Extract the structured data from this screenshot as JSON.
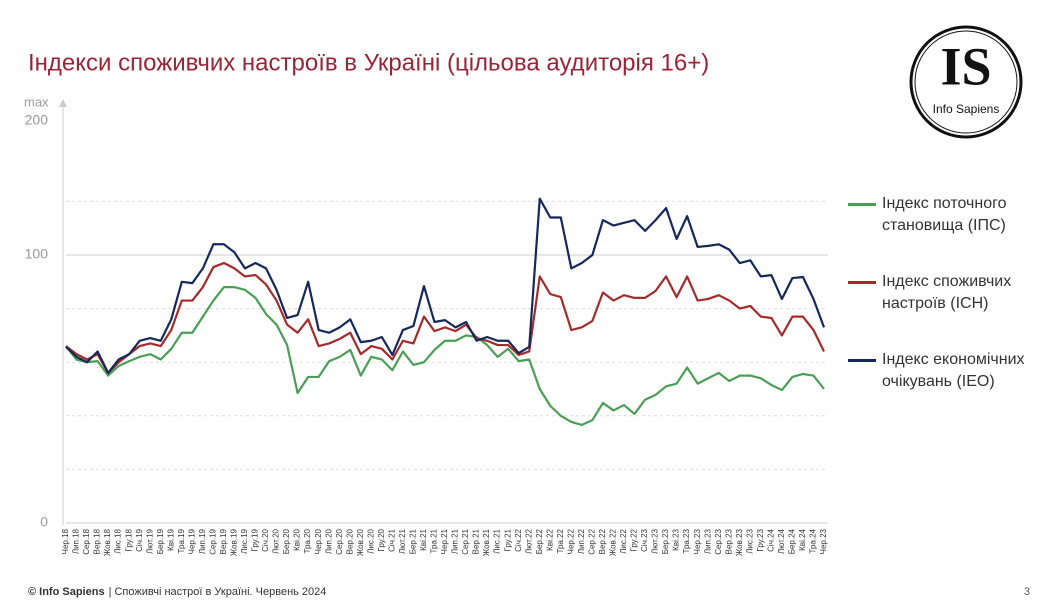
{
  "chart_data": {
    "type": "line",
    "title": "Індекси споживчих настроїв в Україні (цільова аудиторія 16+)",
    "y_axis_max_label": "max",
    "y_axis_top_label": "200",
    "categories": [
      "Чер.18",
      "Лип.18",
      "Сер.18",
      "Вер.18",
      "Жов.18",
      "Лис.18",
      "Гру.18",
      "Січ.19",
      "Лют.19",
      "Бер.19",
      "Кві.19",
      "Тра.19",
      "Чер.19",
      "Лип.19",
      "Сер.19",
      "Вер.19",
      "Жов.19",
      "Лис.19",
      "Гру.19",
      "Січ.20",
      "Лют.20",
      "Бер.20",
      "Кві.20",
      "Тра.20",
      "Чер.20",
      "Лип.20",
      "Сер.20",
      "Вер.20",
      "Жов.20",
      "Лис.20",
      "Гру.20",
      "Січ.21",
      "Лют.21",
      "Бер.21",
      "Кві.21",
      "Тра.21",
      "Чер.21",
      "Лип.21",
      "Сер.21",
      "Вер.21",
      "Жов.21",
      "Лис.21",
      "Гру.21",
      "Січ.22",
      "Лют.22",
      "Бер.22",
      "Кві.22",
      "Тра.22",
      "Чер.22",
      "Лип.22",
      "Сер.22",
      "Вер.22",
      "Жов.22",
      "Лис.22",
      "Гру.22",
      "Січ.23",
      "Лют.23",
      "Бер.23",
      "Кві.23",
      "Тра.23",
      "Чер.23",
      "Лип.23",
      "Сер.23",
      "Вер.23",
      "Жов.23",
      "Лис.23",
      "Гру.23",
      "Січ.24",
      "Лют.24",
      "Бер.24",
      "Кві.24",
      "Тра.24",
      "Чер.23"
    ],
    "series": [
      {
        "name": "Індекс поточного становища (ІПС)",
        "color": "#4a9e56",
        "values": [
          66,
          61,
          60,
          60.4,
          55,
          58.6,
          60.4,
          62,
          63,
          61,
          65,
          71,
          71,
          77,
          83,
          88,
          88,
          87,
          84,
          78,
          74,
          66.4,
          48.5,
          54.5,
          54.5,
          60.4,
          62,
          64.6,
          55,
          62,
          61,
          57,
          64,
          59,
          60,
          64.6,
          68,
          68,
          70,
          69.4,
          66.4,
          62,
          65,
          60.4,
          61,
          50,
          43.7,
          40,
          37.7,
          36.6,
          38.4,
          44.8,
          42,
          44,
          40.7,
          46,
          47.8,
          51,
          52,
          58,
          52,
          54,
          56,
          53,
          55,
          55,
          54,
          51.5,
          49.6,
          54.5,
          55.6,
          55,
          50
        ]
      },
      {
        "name": "Індекс споживчих настроїв (ІСН)",
        "color": "#a52a2a",
        "values": [
          66,
          63,
          61,
          63,
          56,
          60,
          63,
          66,
          67,
          66,
          72,
          83,
          83,
          88,
          95.5,
          97,
          95,
          92,
          92.5,
          89,
          83,
          74,
          71,
          76,
          66,
          67,
          68.7,
          71,
          63,
          66,
          65,
          61,
          68,
          67,
          77,
          71.6,
          73,
          71.6,
          74,
          69,
          68,
          66.4,
          66.4,
          62.7,
          64,
          92,
          85.4,
          84.3,
          72,
          73,
          75.4,
          86,
          83,
          85,
          84,
          84,
          86.6,
          92,
          84.3,
          92,
          83,
          83.6,
          85,
          83,
          80,
          81,
          77,
          76.5,
          70,
          77,
          77,
          72,
          64
        ]
      },
      {
        "name": "Індекс економічних очікувань (ІЕО)",
        "color": "#14285a",
        "values": [
          65.7,
          62,
          60,
          64,
          56,
          61,
          63,
          68,
          69,
          68,
          76,
          90,
          89.5,
          95,
          104,
          104,
          101,
          95,
          97,
          95,
          87,
          76.5,
          77.6,
          90,
          72,
          71,
          73,
          76,
          67.5,
          68,
          69.4,
          62.7,
          72,
          73.5,
          88.4,
          75,
          75.7,
          73,
          75,
          68,
          69.4,
          68,
          68,
          63.4,
          65.7,
          121,
          114,
          114,
          95,
          97,
          100,
          113,
          111,
          112,
          113,
          109,
          113,
          117.5,
          106,
          114.5,
          103,
          103.4,
          104,
          102,
          97,
          98,
          92,
          92.5,
          83.6,
          91.4,
          91.8,
          83.6,
          73
        ]
      }
    ],
    "ylim": [
      0,
      150
    ],
    "yticks": [
      0,
      100
    ],
    "gridlines": [
      20,
      40,
      60,
      80,
      120
    ]
  },
  "logo": {
    "mark": "IS",
    "name": "Info Sapiens"
  },
  "footer": {
    "source": "© Info Sapiens",
    "text": "| Споживчі настрої в Україні. Червень 2024",
    "page": "3"
  }
}
